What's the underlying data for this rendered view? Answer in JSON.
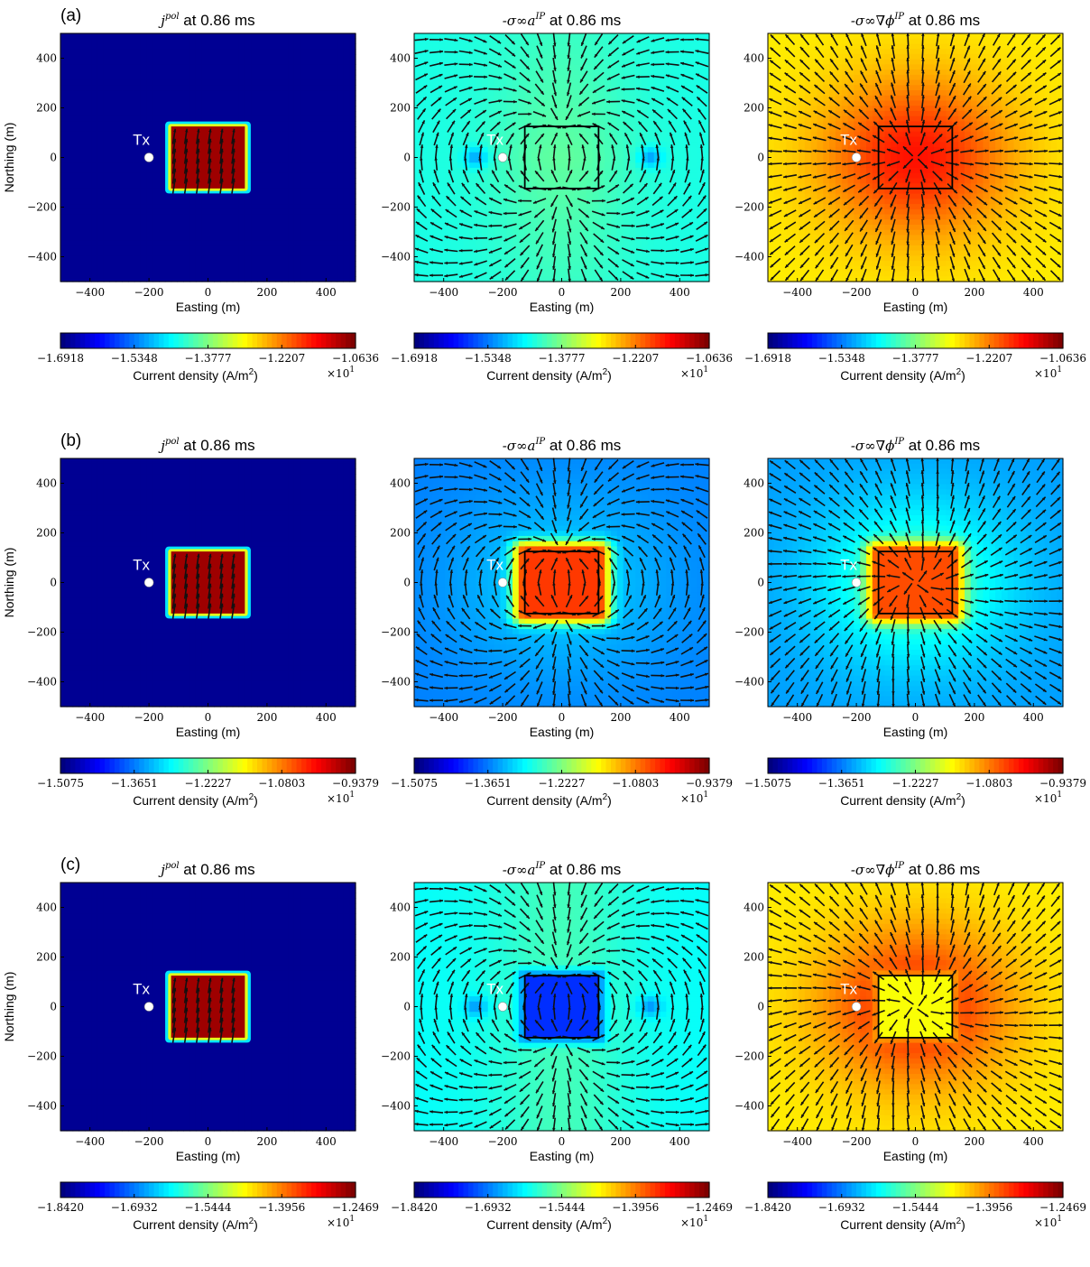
{
  "tx_label": "Tx",
  "tx_position": [
    -200,
    0
  ],
  "prism_extent": [
    -125,
    125,
    -125,
    125
  ],
  "colormap": [
    "#00007f",
    "#0000ff",
    "#007fff",
    "#00ffff",
    "#7fff7f",
    "#ffff00",
    "#ff7f00",
    "#ff0000",
    "#7f0000"
  ],
  "chart_data": [
    {
      "row": "(a)",
      "col": 0,
      "type": "heatmap",
      "title_main": "j",
      "title_sup": "pol",
      "title_suffix": " at 0.86 ms",
      "xlabel": "Easting (m)",
      "ylabel": "Northing (m)",
      "xlim": [
        -500,
        500
      ],
      "ylim": [
        -500,
        500
      ],
      "xticks": [
        -400,
        -200,
        0,
        200,
        400
      ],
      "yticks": [
        400,
        200,
        0,
        -200,
        -400
      ],
      "field": "jpol",
      "bg_level": 0.02,
      "box_level": 0.97,
      "show_outline": false,
      "colorbar": {
        "label": "Current density (A/m2)",
        "ticks": [
          "−1.6918",
          "−1.5348",
          "−1.3777",
          "−1.2207",
          "−1.0636"
        ],
        "multiplier": "×10"
      }
    },
    {
      "row": "(a)",
      "col": 1,
      "type": "heatmap",
      "title_main": "-σ∞a",
      "title_sup": "IP",
      "title_suffix": " at 0.86 ms",
      "xlabel": "Easting (m)",
      "ylabel": "",
      "xlim": [
        -500,
        500
      ],
      "ylim": [
        -500,
        500
      ],
      "xticks": [
        -400,
        -200,
        0,
        200,
        400
      ],
      "yticks": [
        400,
        200,
        0,
        -200,
        -400
      ],
      "field": "vortex",
      "bg_level": 0.4,
      "center_level": 0.47,
      "eddy_level": 0.27,
      "show_outline": true,
      "colorbar": {
        "label": "Current density (A/m2)",
        "ticks": [
          "−1.6918",
          "−1.5348",
          "−1.3777",
          "−1.2207",
          "−1.0636"
        ],
        "multiplier": "×10"
      }
    },
    {
      "row": "(a)",
      "col": 2,
      "type": "heatmap",
      "title_main": "-σ∞∇ϕ",
      "title_sup": "IP",
      "title_suffix": " at 0.86 ms",
      "xlabel": "Easting (m)",
      "ylabel": "",
      "xlim": [
        -500,
        500
      ],
      "ylim": [
        -500,
        500
      ],
      "xticks": [
        -400,
        -200,
        0,
        200,
        400
      ],
      "yticks": [
        400,
        200,
        0,
        -200,
        -400
      ],
      "field": "radial",
      "edge_level": 0.64,
      "center_level": 0.86,
      "show_outline": true,
      "colorbar": {
        "label": "Current density (A/m2)",
        "ticks": [
          "−1.6918",
          "−1.5348",
          "−1.3777",
          "−1.2207",
          "−1.0636"
        ],
        "multiplier": "×10"
      }
    },
    {
      "row": "(b)",
      "col": 0,
      "type": "heatmap",
      "title_main": "j",
      "title_sup": "pol",
      "title_suffix": " at 0.86 ms",
      "xlabel": "Easting (m)",
      "ylabel": "Northing (m)",
      "xlim": [
        -500,
        500
      ],
      "ylim": [
        -500,
        500
      ],
      "xticks": [
        -400,
        -200,
        0,
        200,
        400
      ],
      "yticks": [
        400,
        200,
        0,
        -200,
        -400
      ],
      "field": "jpol",
      "bg_level": 0.02,
      "box_level": 0.97,
      "show_outline": false,
      "colorbar": {
        "label": "Current density (A/m2)",
        "ticks": [
          "−1.5075",
          "−1.3651",
          "−1.2227",
          "−1.0803",
          "−0.9379"
        ],
        "multiplier": "×10"
      }
    },
    {
      "row": "(b)",
      "col": 1,
      "type": "heatmap",
      "title_main": "-σ∞a",
      "title_sup": "IP",
      "title_suffix": " at 0.86 ms",
      "xlabel": "Easting (m)",
      "ylabel": "",
      "xlim": [
        -500,
        500
      ],
      "ylim": [
        -500,
        500
      ],
      "xticks": [
        -400,
        -200,
        0,
        200,
        400
      ],
      "yticks": [
        400,
        200,
        0,
        -200,
        -400
      ],
      "field": "vortex_box",
      "bg_level": 0.25,
      "box_level": 0.82,
      "show_outline": true,
      "colorbar": {
        "label": "Current density (A/m2)",
        "ticks": [
          "−1.5075",
          "−1.3651",
          "−1.2227",
          "−1.0803",
          "−0.9379"
        ],
        "multiplier": "×10"
      }
    },
    {
      "row": "(b)",
      "col": 2,
      "type": "heatmap",
      "title_main": "-σ∞∇ϕ",
      "title_sup": "IP",
      "title_suffix": " at 0.86 ms",
      "xlabel": "Easting (m)",
      "ylabel": "",
      "xlim": [
        -500,
        500
      ],
      "ylim": [
        -500,
        500
      ],
      "xticks": [
        -400,
        -200,
        0,
        200,
        400
      ],
      "yticks": [
        400,
        200,
        0,
        -200,
        -400
      ],
      "field": "radial_box",
      "edge_level": 0.28,
      "center_level": 0.45,
      "box_level": 0.8,
      "show_outline": true,
      "colorbar": {
        "label": "Current density (A/m2)",
        "ticks": [
          "−1.5075",
          "−1.3651",
          "−1.2227",
          "−1.0803",
          "−0.9379"
        ],
        "multiplier": "×10"
      }
    },
    {
      "row": "(c)",
      "col": 0,
      "type": "heatmap",
      "title_main": "j",
      "title_sup": "pol",
      "title_suffix": " at 0.86 ms",
      "xlabel": "Easting (m)",
      "ylabel": "Northing (m)",
      "xlim": [
        -500,
        500
      ],
      "ylim": [
        -500,
        500
      ],
      "xticks": [
        -400,
        -200,
        0,
        200,
        400
      ],
      "yticks": [
        400,
        200,
        0,
        -200,
        -400
      ],
      "field": "jpol",
      "bg_level": 0.02,
      "box_level": 0.97,
      "show_outline": false,
      "colorbar": {
        "label": "Current density (A/m2)",
        "ticks": [
          "−1.8420",
          "−1.6932",
          "−1.5444",
          "−1.3956",
          "−1.2469"
        ],
        "multiplier": "×10"
      }
    },
    {
      "row": "(c)",
      "col": 1,
      "type": "heatmap",
      "title_main": "-σ∞a",
      "title_sup": "IP",
      "title_suffix": " at 0.86 ms",
      "xlabel": "Easting (m)",
      "ylabel": "",
      "xlim": [
        -500,
        500
      ],
      "ylim": [
        -500,
        500
      ],
      "xticks": [
        -400,
        -200,
        0,
        200,
        400
      ],
      "yticks": [
        400,
        200,
        0,
        -200,
        -400
      ],
      "field": "vortex_low",
      "bg_level": 0.38,
      "center_level": 0.44,
      "box_level": 0.17,
      "eddy_level": 0.26,
      "show_outline": true,
      "colorbar": {
        "label": "Current density (A/m2)",
        "ticks": [
          "−1.8420",
          "−1.6932",
          "−1.5444",
          "−1.3956",
          "−1.2469"
        ],
        "multiplier": "×10"
      }
    },
    {
      "row": "(c)",
      "col": 2,
      "type": "heatmap",
      "title_main": "-σ∞∇ϕ",
      "title_sup": "IP",
      "title_suffix": " at 0.86 ms",
      "xlabel": "Easting (m)",
      "ylabel": "",
      "xlim": [
        -500,
        500
      ],
      "ylim": [
        -500,
        500
      ],
      "xticks": [
        -400,
        -200,
        0,
        200,
        400
      ],
      "yticks": [
        400,
        200,
        0,
        -200,
        -400
      ],
      "field": "radial_hole",
      "edge_level": 0.64,
      "center_level": 0.86,
      "box_level": 0.62,
      "show_outline": true,
      "colorbar": {
        "label": "Current density (A/m2)",
        "ticks": [
          "−1.8420",
          "−1.6932",
          "−1.5444",
          "−1.3956",
          "−1.2469"
        ],
        "multiplier": "×10"
      }
    }
  ]
}
